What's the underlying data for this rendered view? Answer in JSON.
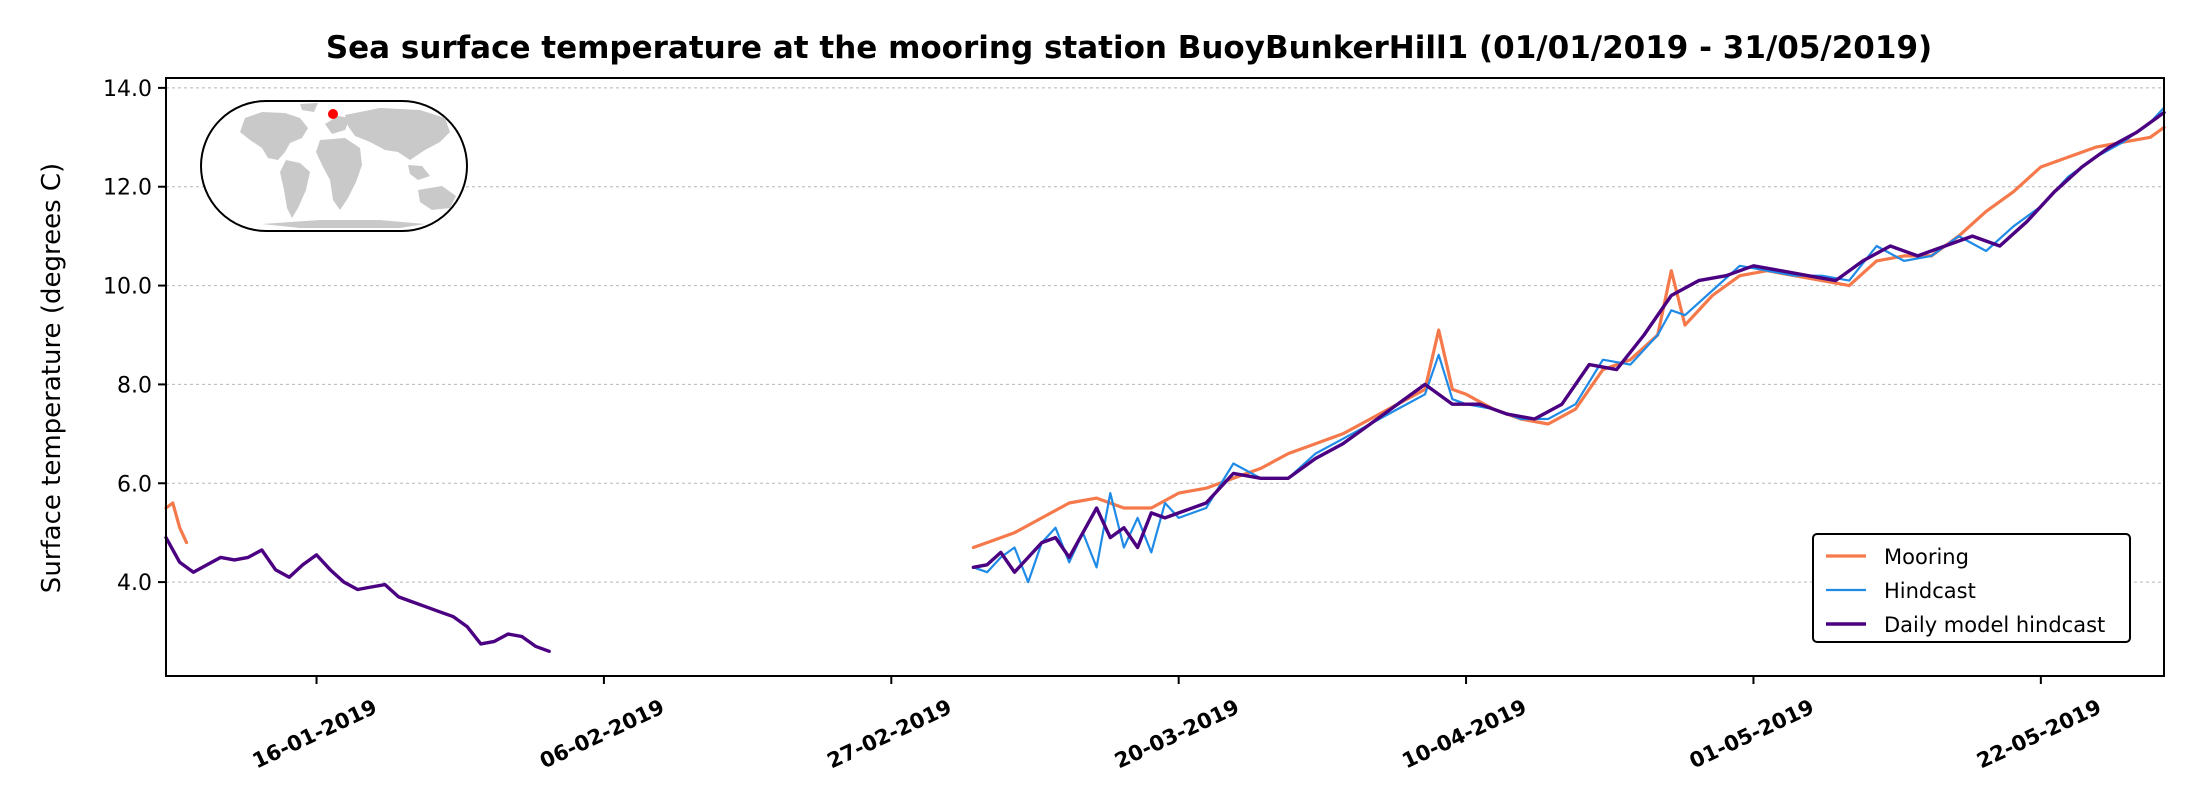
{
  "chart_data": {
    "type": "line",
    "title": "Sea surface temperature at the mooring station BuoyBunkerHill1 (01/01/2019 - 31/05/2019)",
    "ylabel": "Surface temperature (degrees C)",
    "xlabel": "",
    "xlim": [
      "2019-01-05",
      "2019-05-31"
    ],
    "ylim": [
      2.1,
      14.2
    ],
    "yticks": [
      4.0,
      6.0,
      8.0,
      10.0,
      12.0,
      14.0
    ],
    "ytick_labels": [
      "4.0",
      "6.0",
      "8.0",
      "10.0",
      "12.0",
      "14.0"
    ],
    "xticks": [
      "2019-01-16",
      "2019-02-06",
      "2019-02-27",
      "2019-03-20",
      "2019-04-10",
      "2019-05-01",
      "2019-05-22"
    ],
    "xtick_labels": [
      "16-01-2019",
      "06-02-2019",
      "27-02-2019",
      "20-03-2019",
      "10-04-2019",
      "01-05-2019",
      "22-05-2019"
    ],
    "grid": "horizontal dashed",
    "legend_position": "lower right",
    "inset": "world map with station location marker",
    "series": [
      {
        "name": "Mooring",
        "color": "#f5794a",
        "x": [
          "2019-01-05",
          "2019-01-05T12",
          "2019-01-06",
          "2019-01-06T12",
          "2019-03-05",
          "2019-03-06",
          "2019-03-08",
          "2019-03-10",
          "2019-03-12",
          "2019-03-14",
          "2019-03-16",
          "2019-03-18",
          "2019-03-20",
          "2019-03-22",
          "2019-03-24",
          "2019-03-26",
          "2019-03-28",
          "2019-03-30",
          "2019-04-01",
          "2019-04-03",
          "2019-04-05",
          "2019-04-07",
          "2019-04-08",
          "2019-04-09",
          "2019-04-10",
          "2019-04-12",
          "2019-04-14",
          "2019-04-16",
          "2019-04-18",
          "2019-04-20",
          "2019-04-22",
          "2019-04-24",
          "2019-04-25",
          "2019-04-26",
          "2019-04-28",
          "2019-04-30",
          "2019-05-02",
          "2019-05-04",
          "2019-05-06",
          "2019-05-08",
          "2019-05-10",
          "2019-05-12",
          "2019-05-14",
          "2019-05-16",
          "2019-05-18",
          "2019-05-20",
          "2019-05-22",
          "2019-05-24",
          "2019-05-26",
          "2019-05-28",
          "2019-05-30",
          "2019-05-31"
        ],
        "y": [
          5.5,
          5.6,
          5.1,
          4.8,
          4.7,
          4.8,
          5.0,
          5.3,
          5.6,
          5.7,
          5.5,
          5.5,
          5.8,
          5.9,
          6.1,
          6.3,
          6.6,
          6.8,
          7.0,
          7.3,
          7.6,
          7.9,
          9.1,
          7.9,
          7.8,
          7.5,
          7.3,
          7.2,
          7.5,
          8.3,
          8.5,
          9.0,
          10.3,
          9.2,
          9.8,
          10.2,
          10.3,
          10.2,
          10.1,
          10.0,
          10.5,
          10.6,
          10.6,
          11.0,
          11.5,
          11.9,
          12.4,
          12.6,
          12.8,
          12.9,
          13.0,
          13.2
        ]
      },
      {
        "name": "Hindcast",
        "color": "#1f8be6",
        "x": [
          "2019-03-05",
          "2019-03-06",
          "2019-03-07",
          "2019-03-08",
          "2019-03-09",
          "2019-03-10",
          "2019-03-11",
          "2019-03-12",
          "2019-03-13",
          "2019-03-14",
          "2019-03-15",
          "2019-03-16",
          "2019-03-17",
          "2019-03-18",
          "2019-03-19",
          "2019-03-20",
          "2019-03-22",
          "2019-03-24",
          "2019-03-26",
          "2019-03-28",
          "2019-03-30",
          "2019-04-01",
          "2019-04-03",
          "2019-04-05",
          "2019-04-07",
          "2019-04-08",
          "2019-04-09",
          "2019-04-10",
          "2019-04-12",
          "2019-04-14",
          "2019-04-16",
          "2019-04-18",
          "2019-04-20",
          "2019-04-22",
          "2019-04-24",
          "2019-04-25",
          "2019-04-26",
          "2019-04-28",
          "2019-04-30",
          "2019-05-02",
          "2019-05-04",
          "2019-05-06",
          "2019-05-08",
          "2019-05-10",
          "2019-05-12",
          "2019-05-14",
          "2019-05-16",
          "2019-05-18",
          "2019-05-20",
          "2019-05-22",
          "2019-05-24",
          "2019-05-26",
          "2019-05-28",
          "2019-05-30",
          "2019-05-31"
        ],
        "y": [
          4.3,
          4.2,
          4.5,
          4.7,
          4.0,
          4.8,
          5.1,
          4.4,
          5.0,
          4.3,
          5.8,
          4.7,
          5.3,
          4.6,
          5.6,
          5.3,
          5.5,
          6.4,
          6.1,
          6.1,
          6.6,
          6.9,
          7.2,
          7.5,
          7.8,
          8.6,
          7.7,
          7.6,
          7.5,
          7.3,
          7.3,
          7.6,
          8.5,
          8.4,
          9.0,
          9.5,
          9.4,
          9.9,
          10.4,
          10.3,
          10.2,
          10.2,
          10.1,
          10.8,
          10.5,
          10.6,
          11.0,
          10.7,
          11.2,
          11.6,
          12.2,
          12.6,
          12.9,
          13.3,
          13.6
        ]
      },
      {
        "name": "Daily model hindcast",
        "color": "#4b0082",
        "x": [
          "2019-01-05",
          "2019-01-06",
          "2019-01-07",
          "2019-01-08",
          "2019-01-09",
          "2019-01-10",
          "2019-01-11",
          "2019-01-12",
          "2019-01-13",
          "2019-01-14",
          "2019-01-15",
          "2019-01-16",
          "2019-01-17",
          "2019-01-18",
          "2019-01-19",
          "2019-01-20",
          "2019-01-21",
          "2019-01-22",
          "2019-01-23",
          "2019-01-24",
          "2019-01-25",
          "2019-01-26",
          "2019-01-27",
          "2019-01-28",
          "2019-01-29",
          "2019-01-30",
          "2019-01-31",
          "2019-02-01",
          "2019-02-02",
          "2019-03-05",
          "2019-03-06",
          "2019-03-07",
          "2019-03-08",
          "2019-03-09",
          "2019-03-10",
          "2019-03-11",
          "2019-03-12",
          "2019-03-13",
          "2019-03-14",
          "2019-03-15",
          "2019-03-16",
          "2019-03-17",
          "2019-03-18",
          "2019-03-19",
          "2019-03-20",
          "2019-03-22",
          "2019-03-24",
          "2019-03-26",
          "2019-03-28",
          "2019-03-30",
          "2019-04-01",
          "2019-04-03",
          "2019-04-05",
          "2019-04-07",
          "2019-04-09",
          "2019-04-11",
          "2019-04-13",
          "2019-04-15",
          "2019-04-17",
          "2019-04-19",
          "2019-04-21",
          "2019-04-23",
          "2019-04-25",
          "2019-04-27",
          "2019-04-29",
          "2019-05-01",
          "2019-05-03",
          "2019-05-05",
          "2019-05-07",
          "2019-05-09",
          "2019-05-11",
          "2019-05-13",
          "2019-05-15",
          "2019-05-17",
          "2019-05-19",
          "2019-05-21",
          "2019-05-23",
          "2019-05-25",
          "2019-05-27",
          "2019-05-29",
          "2019-05-31"
        ],
        "y": [
          4.9,
          4.4,
          4.2,
          4.35,
          4.5,
          4.45,
          4.5,
          4.65,
          4.25,
          4.1,
          4.35,
          4.55,
          4.25,
          4.0,
          3.85,
          3.9,
          3.95,
          3.7,
          3.6,
          3.5,
          3.4,
          3.3,
          3.1,
          2.75,
          2.8,
          2.95,
          2.9,
          2.7,
          2.6,
          4.3,
          4.35,
          4.6,
          4.2,
          4.5,
          4.8,
          4.9,
          4.5,
          5.0,
          5.5,
          4.9,
          5.1,
          4.7,
          5.4,
          5.3,
          5.4,
          5.6,
          6.2,
          6.1,
          6.1,
          6.5,
          6.8,
          7.2,
          7.6,
          8.0,
          7.6,
          7.6,
          7.4,
          7.3,
          7.6,
          8.4,
          8.3,
          9.0,
          9.8,
          10.1,
          10.2,
          10.4,
          10.3,
          10.2,
          10.1,
          10.5,
          10.8,
          10.6,
          10.8,
          11.0,
          10.8,
          11.3,
          11.9,
          12.4,
          12.8,
          13.1,
          13.5
        ]
      }
    ]
  }
}
